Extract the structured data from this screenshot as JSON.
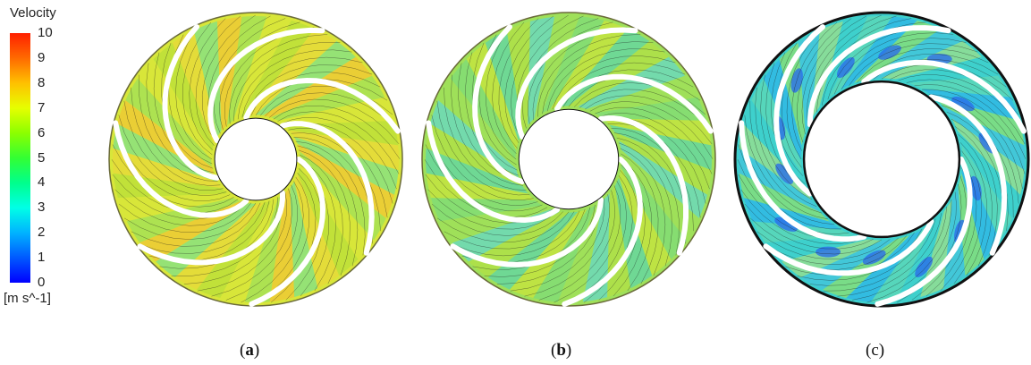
{
  "legend": {
    "title": "Velocity",
    "unit": "[m s^-1]",
    "ticks": [
      "10",
      "9",
      "8",
      "7",
      "6",
      "5",
      "4",
      "3",
      "2",
      "1",
      "0"
    ],
    "colors": [
      "#0000ff",
      "#0059ff",
      "#00b3ff",
      "#00ffe6",
      "#00ff8c",
      "#33ff33",
      "#8cff00",
      "#e6ff00",
      "#ffc000",
      "#ff6a00",
      "#ff2000"
    ]
  },
  "panels": [
    {
      "label": "a",
      "blades": 7,
      "hub_ratio": 0.28,
      "tone": "fast"
    },
    {
      "label": "b",
      "blades": 7,
      "hub_ratio": 0.34,
      "tone": "medium"
    },
    {
      "label": "c",
      "blades": 7,
      "hub_ratio": 0.53,
      "tone": "slow"
    }
  ]
}
